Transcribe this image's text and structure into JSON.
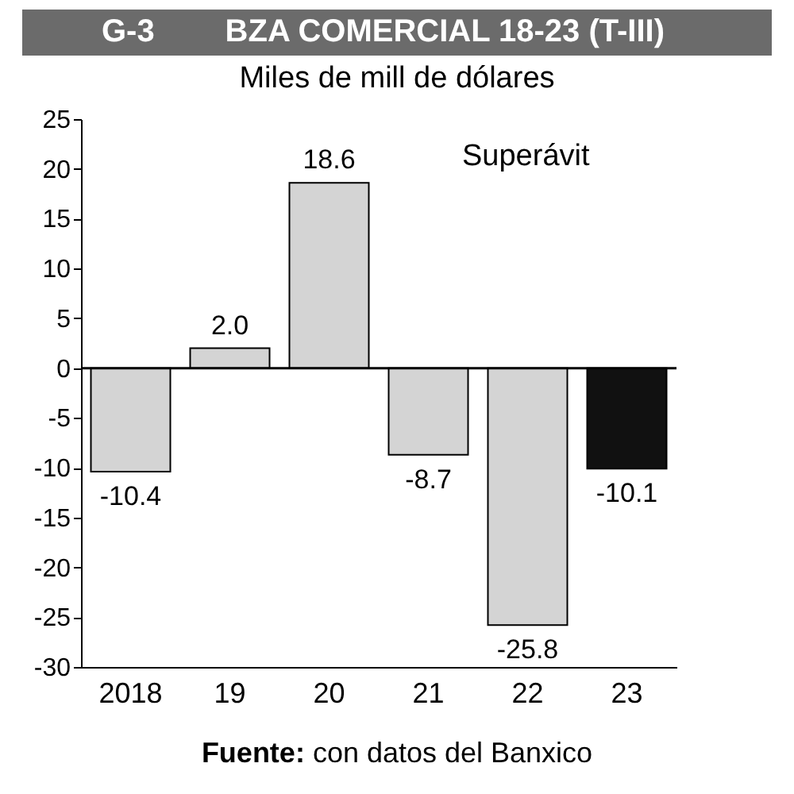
{
  "chart_data": {
    "type": "bar",
    "title": "G-3        BZA COMERCIAL 18-23 (T-III)",
    "subtitle": "Miles de mill de dólares",
    "categories": [
      "2018",
      "19",
      "20",
      "21",
      "22",
      "23"
    ],
    "values": [
      -10.4,
      2.0,
      18.6,
      -8.7,
      -25.8,
      -10.1
    ],
    "colors": [
      "#d4d4d4",
      "#d4d4d4",
      "#d4d4d4",
      "#d4d4d4",
      "#d4d4d4",
      "#111111"
    ],
    "value_labels": [
      "-10.4",
      "2.0",
      "18.6",
      "-8.7",
      "-25.8",
      "-10.1"
    ],
    "ylim": [
      -30,
      25
    ],
    "yticks": [
      -30,
      -25,
      -20,
      -15,
      -10,
      -5,
      0,
      5,
      10,
      15,
      20,
      25
    ],
    "ref_lines": [
      {
        "axis": "y",
        "value": 0
      }
    ],
    "grid": false,
    "annotations": [
      "Superávit",
      "Fuente: con datos del Banxico"
    ]
  }
}
